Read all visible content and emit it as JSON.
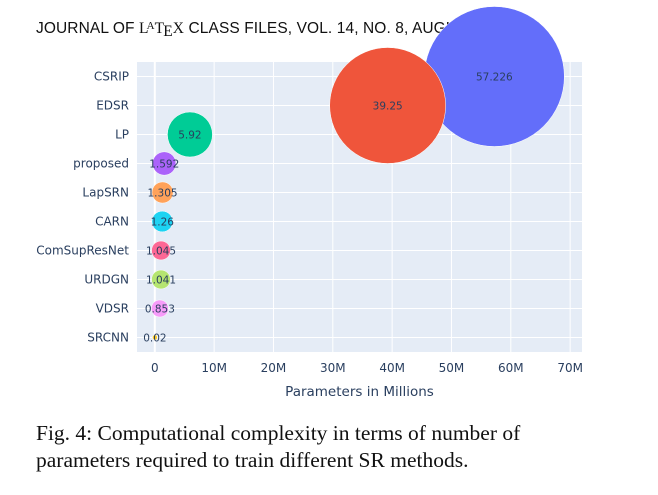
{
  "header": {
    "text_before": "JOURNAL OF ",
    "latex": "LATEX",
    "text_after": " CLASS FILES, VOL. 14, NO. 8, AUGUST 2015"
  },
  "chart_data": {
    "type": "scatter",
    "title": "",
    "xlabel": "Parameters in Millions",
    "ylabel": "",
    "xlim": [
      -3,
      72
    ],
    "x_ticks": [
      0,
      10,
      20,
      30,
      40,
      50,
      60,
      70
    ],
    "x_tick_labels": [
      "0",
      "10M",
      "20M",
      "30M",
      "40M",
      "50M",
      "60M",
      "70M"
    ],
    "categories": [
      "SRCNN",
      "VDSR",
      "URDGN",
      "ComSupResNet",
      "CARN",
      "LapSRN",
      "proposed",
      "LP",
      "EDSR",
      "CSRIP"
    ],
    "points": [
      {
        "method": "SRCNN",
        "x": 0.02,
        "label": "0.02",
        "color": "#fdcb2b"
      },
      {
        "method": "VDSR",
        "x": 0.853,
        "label": "0.853",
        "color": "#f79cf9"
      },
      {
        "method": "URDGN",
        "x": 1.041,
        "label": "1.041",
        "color": "#b5e570"
      },
      {
        "method": "ComSupResNet",
        "x": 1.045,
        "label": "1.045",
        "color": "#fd6895"
      },
      {
        "method": "CARN",
        "x": 1.26,
        "label": "1.26",
        "color": "#1dd3f2"
      },
      {
        "method": "LapSRN",
        "x": 1.305,
        "label": "1.305",
        "color": "#ffa25a"
      },
      {
        "method": "proposed",
        "x": 1.592,
        "label": "1.592",
        "color": "#ab63fa"
      },
      {
        "method": "LP",
        "x": 5.92,
        "label": "5.92",
        "color": "#00cc96"
      },
      {
        "method": "EDSR",
        "x": 39.25,
        "label": "39.25",
        "color": "#ef553b"
      },
      {
        "method": "CSRIP",
        "x": 57.226,
        "label": "57.226",
        "color": "#636efa"
      }
    ],
    "grid": true,
    "legend": "none",
    "plot_background": "#e5ecf6"
  },
  "caption": {
    "line1": "Fig. 4: Computational complexity in terms of number of",
    "line2": "parameters required to train different SR methods."
  }
}
